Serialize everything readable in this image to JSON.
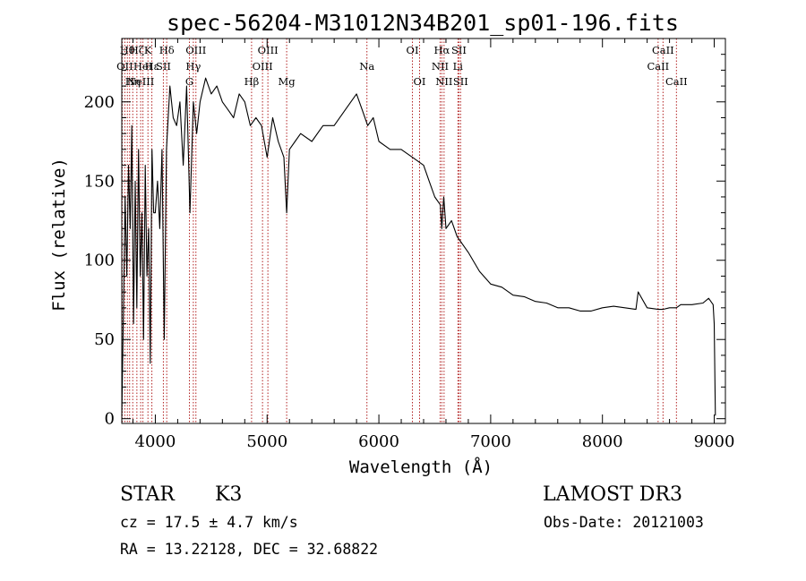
{
  "chart_data": {
    "type": "line",
    "title": "spec-56204-M31012N34B201_sp01-196.fits",
    "xlabel": "Wavelength (Å)",
    "ylabel": "Flux (relative)",
    "xlim": [
      3700,
      9100
    ],
    "ylim": [
      -3,
      240
    ],
    "xticks": [
      4000,
      5000,
      6000,
      7000,
      8000,
      9000
    ],
    "yticks": [
      0,
      50,
      100,
      150,
      200
    ],
    "xtick_labels": [
      "4000",
      "5000",
      "6000",
      "7000",
      "8000",
      "9000"
    ],
    "ytick_labels": [
      "0",
      "50",
      "100",
      "150",
      "200"
    ],
    "series": [
      {
        "name": "flux",
        "x": [
          3700,
          3715,
          3730,
          3745,
          3760,
          3775,
          3790,
          3805,
          3820,
          3835,
          3850,
          3865,
          3880,
          3895,
          3910,
          3925,
          3940,
          3955,
          3970,
          3985,
          4000,
          4020,
          4040,
          4060,
          4080,
          4100,
          4130,
          4160,
          4190,
          4220,
          4250,
          4280,
          4310,
          4340,
          4370,
          4400,
          4450,
          4500,
          4550,
          4600,
          4650,
          4700,
          4750,
          4800,
          4850,
          4900,
          4950,
          5000,
          5050,
          5100,
          5150,
          5175,
          5200,
          5250,
          5300,
          5400,
          5500,
          5600,
          5700,
          5800,
          5850,
          5900,
          5950,
          6000,
          6100,
          6200,
          6300,
          6400,
          6450,
          6500,
          6550,
          6563,
          6580,
          6600,
          6650,
          6700,
          6800,
          6900,
          7000,
          7100,
          7200,
          7300,
          7400,
          7500,
          7600,
          7700,
          7800,
          7900,
          8000,
          8100,
          8200,
          8300,
          8320,
          8400,
          8500,
          8540,
          8600,
          8662,
          8700,
          8800,
          8900,
          8950,
          8990,
          9000,
          9010
        ],
        "y": [
          2,
          70,
          140,
          90,
          160,
          120,
          185,
          60,
          150,
          70,
          170,
          90,
          130,
          50,
          160,
          90,
          120,
          35,
          170,
          130,
          130,
          150,
          120,
          170,
          50,
          170,
          210,
          190,
          185,
          200,
          160,
          210,
          130,
          200,
          180,
          200,
          215,
          205,
          210,
          200,
          195,
          190,
          205,
          200,
          185,
          190,
          185,
          165,
          190,
          175,
          165,
          130,
          170,
          175,
          180,
          175,
          185,
          185,
          195,
          205,
          195,
          185,
          190,
          175,
          170,
          170,
          165,
          160,
          150,
          140,
          135,
          120,
          140,
          120,
          125,
          115,
          105,
          93,
          85,
          83,
          78,
          77,
          74,
          73,
          70,
          70,
          68,
          68,
          70,
          71,
          70,
          69,
          80,
          70,
          69,
          69,
          70,
          70,
          72,
          72,
          73,
          76,
          72,
          60,
          2
        ]
      }
    ],
    "lines": [
      {
        "x": 3704,
        "label": "",
        "row": 0
      },
      {
        "x": 3727,
        "label": "OII",
        "row": 1
      },
      {
        "x": 3750,
        "label": "Hθ",
        "row": 0
      },
      {
        "x": 3770,
        "label": "",
        "row": 0
      },
      {
        "x": 3798,
        "label": "Hη",
        "row": 2
      },
      {
        "x": 3835,
        "label": "Hζ",
        "row": 0
      },
      {
        "x": 3869,
        "label": "NeIII",
        "row": 2
      },
      {
        "x": 3889,
        "label": "HeI",
        "row": 1
      },
      {
        "x": 3934,
        "label": "K",
        "row": 0
      },
      {
        "x": 3969,
        "label": "Hε",
        "row": 1
      },
      {
        "x": 4072,
        "label": "SII",
        "row": 1
      },
      {
        "x": 4102,
        "label": "Hδ",
        "row": 0
      },
      {
        "x": 4305,
        "label": "G",
        "row": 2
      },
      {
        "x": 4340,
        "label": "Hγ",
        "row": 1
      },
      {
        "x": 4363,
        "label": "OIII",
        "row": 0
      },
      {
        "x": 4861,
        "label": "Hβ",
        "row": 2
      },
      {
        "x": 4959,
        "label": "OIII",
        "row": 1
      },
      {
        "x": 5007,
        "label": "OIII",
        "row": 0
      },
      {
        "x": 5175,
        "label": "Mg",
        "row": 2
      },
      {
        "x": 5893,
        "label": "Na",
        "row": 1
      },
      {
        "x": 6300,
        "label": "OI",
        "row": 0
      },
      {
        "x": 6364,
        "label": "OI",
        "row": 2
      },
      {
        "x": 6548,
        "label": "NII",
        "row": 1
      },
      {
        "x": 6563,
        "label": "Hα",
        "row": 0
      },
      {
        "x": 6583,
        "label": "NII",
        "row": 2
      },
      {
        "x": 6707,
        "label": "Li",
        "row": 1
      },
      {
        "x": 6716,
        "label": "SII",
        "row": 0
      },
      {
        "x": 6731,
        "label": "SII",
        "row": 2
      },
      {
        "x": 8498,
        "label": "CaII",
        "row": 1
      },
      {
        "x": 8542,
        "label": "CaII",
        "row": 0
      },
      {
        "x": 8662,
        "label": "CaII",
        "row": 2
      }
    ]
  },
  "info": {
    "class": "STAR",
    "subclass": "K3",
    "survey": "LAMOST DR3",
    "cz": "cz = 17.5 ± 4.7 km/s",
    "obs_date": "Obs-Date: 20121003",
    "coords": "RA =  13.22128, DEC =  32.68822"
  }
}
